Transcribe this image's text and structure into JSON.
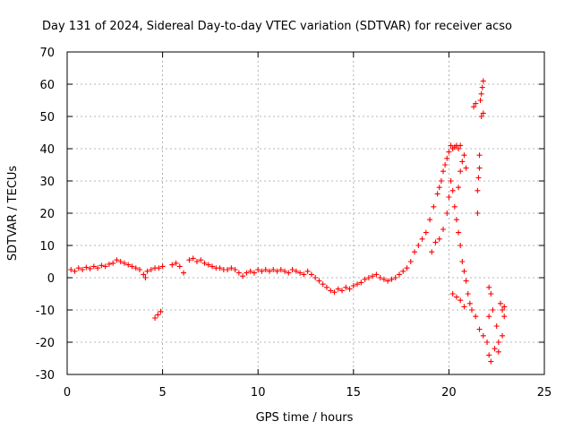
{
  "chart_data": {
    "type": "scatter",
    "title": "Day 131 of 2024, Sidereal Day-to-day VTEC variation (SDTVAR) for receiver acso",
    "xlabel": "GPS time / hours",
    "ylabel": "SDTVAR / TECUs",
    "xlim": [
      0,
      25
    ],
    "ylim": [
      -30,
      70
    ],
    "xticks": [
      0,
      5,
      10,
      15,
      20,
      25
    ],
    "yticks": [
      -30,
      -20,
      -10,
      0,
      10,
      20,
      30,
      40,
      50,
      60,
      70
    ],
    "grid": true,
    "marker": "+",
    "series": [
      {
        "name": "SDTVAR",
        "color": "#ff0000",
        "points": [
          [
            0.2,
            2.5
          ],
          [
            0.4,
            2.0
          ],
          [
            0.6,
            3.0
          ],
          [
            0.8,
            2.5
          ],
          [
            1.0,
            3.2
          ],
          [
            1.2,
            2.8
          ],
          [
            1.4,
            3.5
          ],
          [
            1.6,
            3.0
          ],
          [
            1.8,
            3.8
          ],
          [
            2.0,
            3.5
          ],
          [
            2.2,
            4.2
          ],
          [
            2.4,
            4.5
          ],
          [
            2.6,
            5.5
          ],
          [
            2.8,
            5.0
          ],
          [
            3.0,
            4.5
          ],
          [
            3.2,
            4.0
          ],
          [
            3.4,
            3.5
          ],
          [
            3.6,
            3.0
          ],
          [
            3.8,
            2.5
          ],
          [
            4.0,
            1.0
          ],
          [
            4.1,
            0.0
          ],
          [
            4.2,
            2.0
          ],
          [
            4.4,
            2.5
          ],
          [
            4.6,
            3.0
          ],
          [
            4.8,
            3.0
          ],
          [
            5.0,
            3.5
          ],
          [
            4.6,
            -12.5
          ],
          [
            4.75,
            -11.5
          ],
          [
            4.9,
            -10.5
          ],
          [
            5.5,
            4.0
          ],
          [
            5.7,
            4.5
          ],
          [
            5.9,
            3.5
          ],
          [
            6.1,
            1.5
          ],
          [
            6.4,
            5.5
          ],
          [
            6.6,
            6.0
          ],
          [
            6.8,
            5.0
          ],
          [
            7.0,
            5.5
          ],
          [
            7.2,
            4.5
          ],
          [
            7.4,
            4.0
          ],
          [
            7.6,
            3.5
          ],
          [
            7.8,
            3.0
          ],
          [
            8.0,
            3.0
          ],
          [
            8.2,
            2.5
          ],
          [
            8.4,
            2.5
          ],
          [
            8.6,
            3.0
          ],
          [
            8.8,
            2.5
          ],
          [
            9.0,
            1.5
          ],
          [
            9.2,
            0.5
          ],
          [
            9.4,
            1.5
          ],
          [
            9.6,
            2.0
          ],
          [
            9.8,
            1.5
          ],
          [
            10.0,
            2.5
          ],
          [
            10.2,
            2.0
          ],
          [
            10.4,
            2.5
          ],
          [
            10.6,
            2.0
          ],
          [
            10.8,
            2.5
          ],
          [
            11.0,
            2.0
          ],
          [
            11.2,
            2.5
          ],
          [
            11.4,
            2.0
          ],
          [
            11.6,
            1.5
          ],
          [
            11.8,
            2.5
          ],
          [
            12.0,
            2.0
          ],
          [
            12.2,
            1.5
          ],
          [
            12.4,
            1.0
          ],
          [
            12.6,
            2.0
          ],
          [
            12.8,
            1.0
          ],
          [
            13.0,
            0.0
          ],
          [
            13.2,
            -1.0
          ],
          [
            13.4,
            -2.0
          ],
          [
            13.6,
            -3.0
          ],
          [
            13.8,
            -4.0
          ],
          [
            14.0,
            -4.5
          ],
          [
            14.2,
            -3.5
          ],
          [
            14.4,
            -4.0
          ],
          [
            14.6,
            -3.0
          ],
          [
            14.8,
            -3.5
          ],
          [
            15.0,
            -2.5
          ],
          [
            15.2,
            -2.0
          ],
          [
            15.4,
            -1.5
          ],
          [
            15.6,
            -0.5
          ],
          [
            15.8,
            0.0
          ],
          [
            16.0,
            0.5
          ],
          [
            16.2,
            1.0
          ],
          [
            16.4,
            0.0
          ],
          [
            16.6,
            -0.5
          ],
          [
            16.8,
            -1.0
          ],
          [
            17.0,
            -0.5
          ],
          [
            17.2,
            0.0
          ],
          [
            17.4,
            1.0
          ],
          [
            17.6,
            2.0
          ],
          [
            17.8,
            3.0
          ],
          [
            18.0,
            5.0
          ],
          [
            18.2,
            8.0
          ],
          [
            18.4,
            10.0
          ],
          [
            18.6,
            12.0
          ],
          [
            18.8,
            14.0
          ],
          [
            19.0,
            18.0
          ],
          [
            19.2,
            22.0
          ],
          [
            19.4,
            26.0
          ],
          [
            19.5,
            28.0
          ],
          [
            19.6,
            30.0
          ],
          [
            19.7,
            33.0
          ],
          [
            19.8,
            35.0
          ],
          [
            19.9,
            37.0
          ],
          [
            20.0,
            39.0
          ],
          [
            20.1,
            41.0
          ],
          [
            20.2,
            40.0
          ],
          [
            20.3,
            40.5
          ],
          [
            20.4,
            41.0
          ],
          [
            20.5,
            40.0
          ],
          [
            20.6,
            41.0
          ],
          [
            19.1,
            8.0
          ],
          [
            19.3,
            11.0
          ],
          [
            19.5,
            12.0
          ],
          [
            19.7,
            15.0
          ],
          [
            19.9,
            20.0
          ],
          [
            20.0,
            25.0
          ],
          [
            20.1,
            30.0
          ],
          [
            20.2,
            27.0
          ],
          [
            20.3,
            22.0
          ],
          [
            20.4,
            18.0
          ],
          [
            20.5,
            14.0
          ],
          [
            20.6,
            10.0
          ],
          [
            20.7,
            5.0
          ],
          [
            20.8,
            2.0
          ],
          [
            20.9,
            -1.0
          ],
          [
            21.0,
            -5.0
          ],
          [
            21.1,
            -8.0
          ],
          [
            21.2,
            -10.0
          ],
          [
            21.4,
            -12.0
          ],
          [
            21.6,
            -16.0
          ],
          [
            21.8,
            -18.0
          ],
          [
            22.0,
            -20.0
          ],
          [
            22.1,
            -24.0
          ],
          [
            22.2,
            -26.0
          ],
          [
            22.4,
            -22.0
          ],
          [
            22.6,
            -20.0
          ],
          [
            22.8,
            -18.0
          ],
          [
            22.9,
            -12.0
          ],
          [
            20.5,
            28.0
          ],
          [
            20.6,
            33.0
          ],
          [
            20.7,
            36.0
          ],
          [
            20.8,
            38.0
          ],
          [
            20.9,
            34.0
          ],
          [
            20.2,
            -5.0
          ],
          [
            20.4,
            -6.0
          ],
          [
            20.6,
            -7.0
          ],
          [
            20.8,
            -9.0
          ],
          [
            21.3,
            53.0
          ],
          [
            21.4,
            54.0
          ],
          [
            21.7,
            50.0
          ],
          [
            21.8,
            51.0
          ],
          [
            21.65,
            55.0
          ],
          [
            21.7,
            57.0
          ],
          [
            21.75,
            59.0
          ],
          [
            21.8,
            61.0
          ],
          [
            21.5,
            20.0
          ],
          [
            21.5,
            27.0
          ],
          [
            21.55,
            31.0
          ],
          [
            21.6,
            34.0
          ],
          [
            21.6,
            38.0
          ],
          [
            22.1,
            -3.0
          ],
          [
            22.2,
            -5.0
          ],
          [
            22.3,
            -10.0
          ],
          [
            22.1,
            -12.0
          ],
          [
            22.7,
            -8.0
          ],
          [
            22.8,
            -10.0
          ],
          [
            22.9,
            -9.0
          ],
          [
            22.5,
            -15.0
          ],
          [
            22.6,
            -23.0
          ]
        ]
      }
    ]
  }
}
